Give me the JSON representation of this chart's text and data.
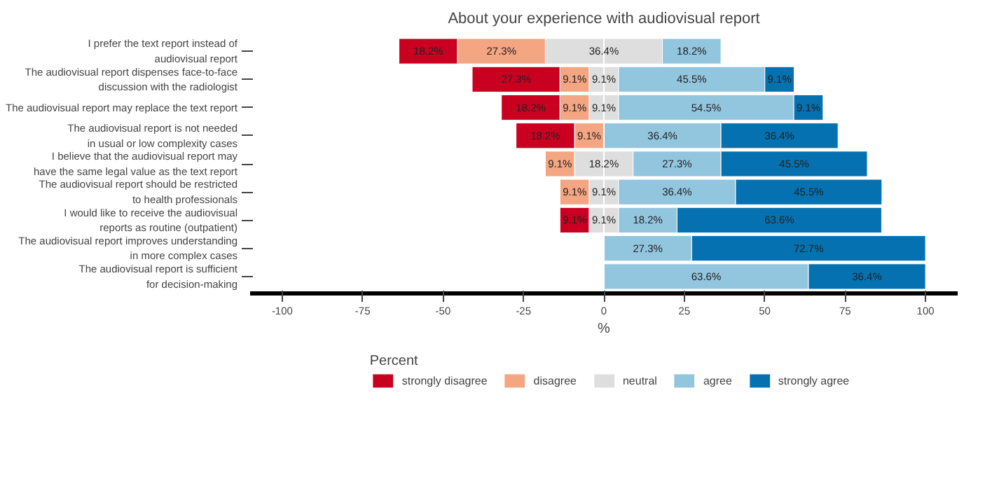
{
  "chart_data": {
    "type": "bar",
    "orientation": "horizontal",
    "title": "About your experience with audiovisual report",
    "xlabel": "%",
    "legend_title": "Percent",
    "legend": "bottom",
    "grid": false,
    "categories": [
      "I prefer the text report instead of\naudiovisual report",
      "The audiovisual report dispenses face-to-face\ndiscussion with the radiologist",
      "The audiovisual report may replace the text report",
      "The audiovisual report is not needed\nin usual or low complexity cases",
      "I believe that the audiovisual report may\nhave the same legal value as the text report",
      "The audiovisual report should be restricted\nto health professionals",
      "I would like to receive the audiovisual\nreports as routine (outpatient)",
      "The audiovisual report improves understanding\nin more complex cases",
      "The audiovisual report is sufficient\nfor decision-making"
    ],
    "xlim": [
      -110,
      110
    ],
    "xticks": [
      -100,
      -75,
      -50,
      -25,
      0,
      25,
      50,
      75,
      100
    ],
    "ref_lines": [
      {
        "axis": "x",
        "value": 0,
        "color": "#ffffff"
      }
    ],
    "series": [
      {
        "name": "strongly disagree",
        "color": "#ca0020",
        "values": [
          18.2,
          27.3,
          18.2,
          18.2,
          null,
          null,
          9.1,
          null,
          null
        ],
        "base": [
          -63.7,
          -40.95,
          -31.85,
          -27.3,
          null,
          null,
          -13.65,
          null,
          null
        ],
        "value_labels": [
          "18.2%",
          "27.3%",
          "18.2%",
          "18.2%",
          null,
          null,
          "9.1%",
          null,
          null
        ]
      },
      {
        "name": "disagree",
        "color": "#f4a582",
        "values": [
          27.3,
          9.1,
          9.1,
          9.1,
          9.1,
          9.1,
          null,
          null,
          null
        ],
        "base": [
          -45.5,
          -13.65,
          -13.65,
          -9.1,
          -18.2,
          -13.65,
          null,
          null,
          null
        ],
        "value_labels": [
          "27.3%",
          "9.1%",
          "9.1%",
          "9.1%",
          "9.1%",
          "9.1%",
          null,
          null,
          null
        ]
      },
      {
        "name": "neutral",
        "color": "#dedede",
        "values": [
          36.4,
          9.1,
          9.1,
          null,
          18.2,
          9.1,
          9.1,
          null,
          null
        ],
        "base": [
          -18.2,
          -4.55,
          -4.55,
          null,
          -9.1,
          -4.55,
          -4.55,
          null,
          null
        ],
        "value_labels": [
          "36.4%",
          "9.1%",
          "9.1%",
          null,
          "18.2%",
          "9.1%",
          "9.1%",
          null,
          null
        ]
      },
      {
        "name": "agree",
        "color": "#92c5de",
        "values": [
          18.2,
          45.5,
          54.5,
          36.4,
          27.3,
          36.4,
          18.2,
          27.3,
          63.6
        ],
        "base": [
          18.2,
          4.55,
          4.55,
          0,
          9.1,
          4.55,
          4.55,
          0,
          0
        ],
        "value_labels": [
          "18.2%",
          "45.5%",
          "54.5%",
          "36.4%",
          "27.3%",
          "36.4%",
          "18.2%",
          "27.3%",
          "63.6%"
        ]
      },
      {
        "name": "strongly agree",
        "color": "#0571b0",
        "values": [
          null,
          9.1,
          9.1,
          36.4,
          45.5,
          45.5,
          63.6,
          72.7,
          36.4
        ],
        "base": [
          null,
          50.05,
          59.05,
          36.4,
          36.4,
          40.95,
          22.75,
          27.3,
          63.6
        ],
        "value_labels": [
          null,
          "9.1%",
          "9.1%",
          "36.4%",
          "45.5%",
          "45.5%",
          "63.6%",
          "72.7%",
          "36.4%"
        ]
      }
    ]
  }
}
